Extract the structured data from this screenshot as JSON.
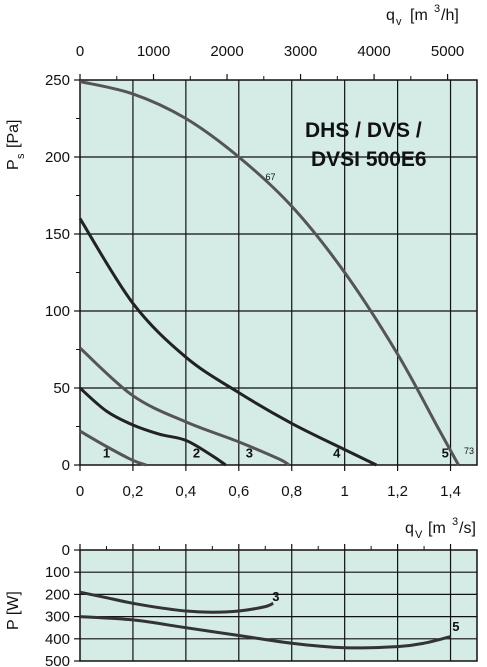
{
  "chart_data": [
    {
      "type": "line",
      "title_lines": [
        "DHS / DVS /",
        "DVSI 500E6"
      ],
      "top_axis_label": "q",
      "top_axis_sub": "v",
      "top_axis_unit": "[m",
      "top_axis_unit_sup": "3",
      "top_axis_unit_end": "/h]",
      "top_ticks": [
        "0",
        "1000",
        "2000",
        "3000",
        "4000",
        "5000"
      ],
      "top_tick_values": [
        0,
        1000,
        2000,
        3000,
        4000,
        5000
      ],
      "bottom_axis_label": "q",
      "bottom_axis_sub": "V",
      "bottom_axis_unit": "[m",
      "bottom_axis_unit_sup": "3",
      "bottom_axis_unit_end": "/s]",
      "x_ticks": [
        "0",
        "0,2",
        "0,4",
        "0,6",
        "0,8",
        "1",
        "1,2",
        "1,4"
      ],
      "x_tick_values": [
        0,
        0.2,
        0.4,
        0.6,
        0.8,
        1.0,
        1.2,
        1.4
      ],
      "xlim": [
        0,
        1.5
      ],
      "ylabel": "P",
      "ylabel_sub": "s",
      "ylabel_unit": "[Pa]",
      "y_ticks": [
        "0",
        "50",
        "100",
        "150",
        "200",
        "250"
      ],
      "y_tick_values": [
        0,
        50,
        100,
        150,
        200,
        250
      ],
      "ylim": [
        0,
        250
      ],
      "grid": true,
      "series": [
        {
          "name": "1",
          "color": "#555555",
          "x": [
            0,
            0.1,
            0.2,
            0.25
          ],
          "y": [
            22,
            12,
            3,
            0
          ]
        },
        {
          "name": "2",
          "color": "#222222",
          "x": [
            0,
            0.1,
            0.2,
            0.3,
            0.4,
            0.5,
            0.55
          ],
          "y": [
            50,
            35,
            26,
            20,
            16,
            6,
            0
          ]
        },
        {
          "name": "3",
          "color": "#555555",
          "x": [
            0,
            0.2,
            0.4,
            0.6,
            0.75,
            0.79
          ],
          "y": [
            76,
            45,
            28,
            15,
            4,
            0
          ]
        },
        {
          "name": "4",
          "color": "#222222",
          "x": [
            0,
            0.2,
            0.4,
            0.6,
            0.8,
            1.0,
            1.12
          ],
          "y": [
            160,
            105,
            70,
            47,
            27,
            10,
            0
          ]
        },
        {
          "name": "5",
          "color": "#555555",
          "x": [
            0,
            0.2,
            0.4,
            0.6,
            0.8,
            1.0,
            1.2,
            1.35,
            1.43
          ],
          "y": [
            249,
            241,
            225,
            200,
            168,
            125,
            72,
            25,
            0
          ]
        }
      ],
      "curve_labels": [
        {
          "text": "1",
          "x": 0.1,
          "y": 5
        },
        {
          "text": "2",
          "x": 0.44,
          "y": 5
        },
        {
          "text": "3",
          "x": 0.64,
          "y": 5
        },
        {
          "text": "4",
          "x": 0.97,
          "y": 5
        },
        {
          "text": "5",
          "x": 1.38,
          "y": 5
        }
      ],
      "small_labels": [
        {
          "text": "67",
          "x": 0.72,
          "y": 185
        },
        {
          "text": "73",
          "x": 1.47,
          "y": 7
        }
      ]
    },
    {
      "type": "line",
      "ylabel": "P [W]",
      "y_ticks": [
        "0",
        "100",
        "200",
        "300",
        "400",
        "500"
      ],
      "y_tick_values": [
        0,
        100,
        200,
        300,
        400,
        500
      ],
      "ylim": [
        0,
        500
      ],
      "y_inverted": true,
      "xlim": [
        0,
        1.5
      ],
      "grid": true,
      "series": [
        {
          "name": "3",
          "color": "#333333",
          "x": [
            0,
            0.1,
            0.2,
            0.3,
            0.4,
            0.5,
            0.6,
            0.7,
            0.73
          ],
          "y": [
            190,
            215,
            240,
            260,
            275,
            280,
            275,
            255,
            240
          ]
        },
        {
          "name": "5",
          "color": "#333333",
          "x": [
            0,
            0.2,
            0.4,
            0.6,
            0.8,
            1.0,
            1.2,
            1.3,
            1.4
          ],
          "y": [
            300,
            315,
            350,
            385,
            420,
            440,
            435,
            420,
            390
          ]
        }
      ],
      "curve_labels": [
        {
          "text": "3",
          "x": 0.74,
          "y": 230
        },
        {
          "text": "5",
          "x": 1.42,
          "y": 365
        }
      ]
    }
  ]
}
